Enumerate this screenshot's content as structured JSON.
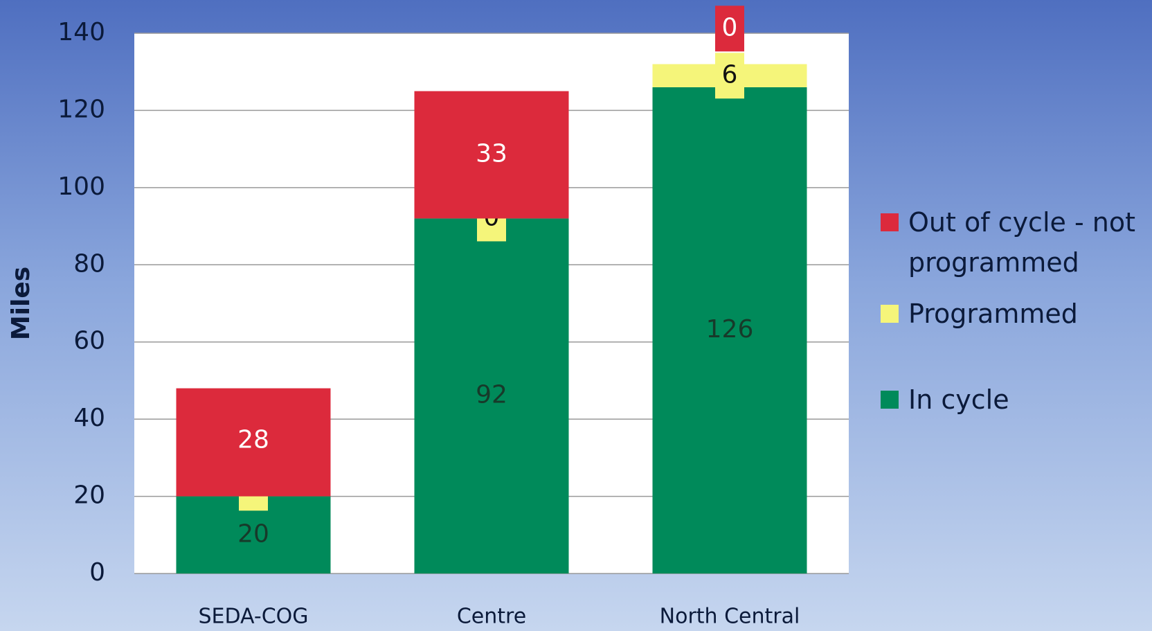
{
  "chart_data": {
    "type": "stacked_bar",
    "y_label": "Miles",
    "categories": [
      "SEDA-COG",
      "Centre",
      "North Central"
    ],
    "series": [
      {
        "name": "In cycle",
        "color": "#008a5a",
        "values": [
          20,
          92,
          126
        ]
      },
      {
        "name": "Programmed",
        "color": "#f5f57a",
        "values": [
          0,
          0,
          6
        ]
      },
      {
        "name": "Out of cycle - not programmed",
        "color": "#dc2a3c",
        "values": [
          28,
          33,
          0
        ]
      }
    ],
    "ylim": [
      0,
      140
    ],
    "yticks": [
      0,
      20,
      40,
      60,
      80,
      100,
      120,
      140
    ],
    "grid": true,
    "legend": "right"
  }
}
